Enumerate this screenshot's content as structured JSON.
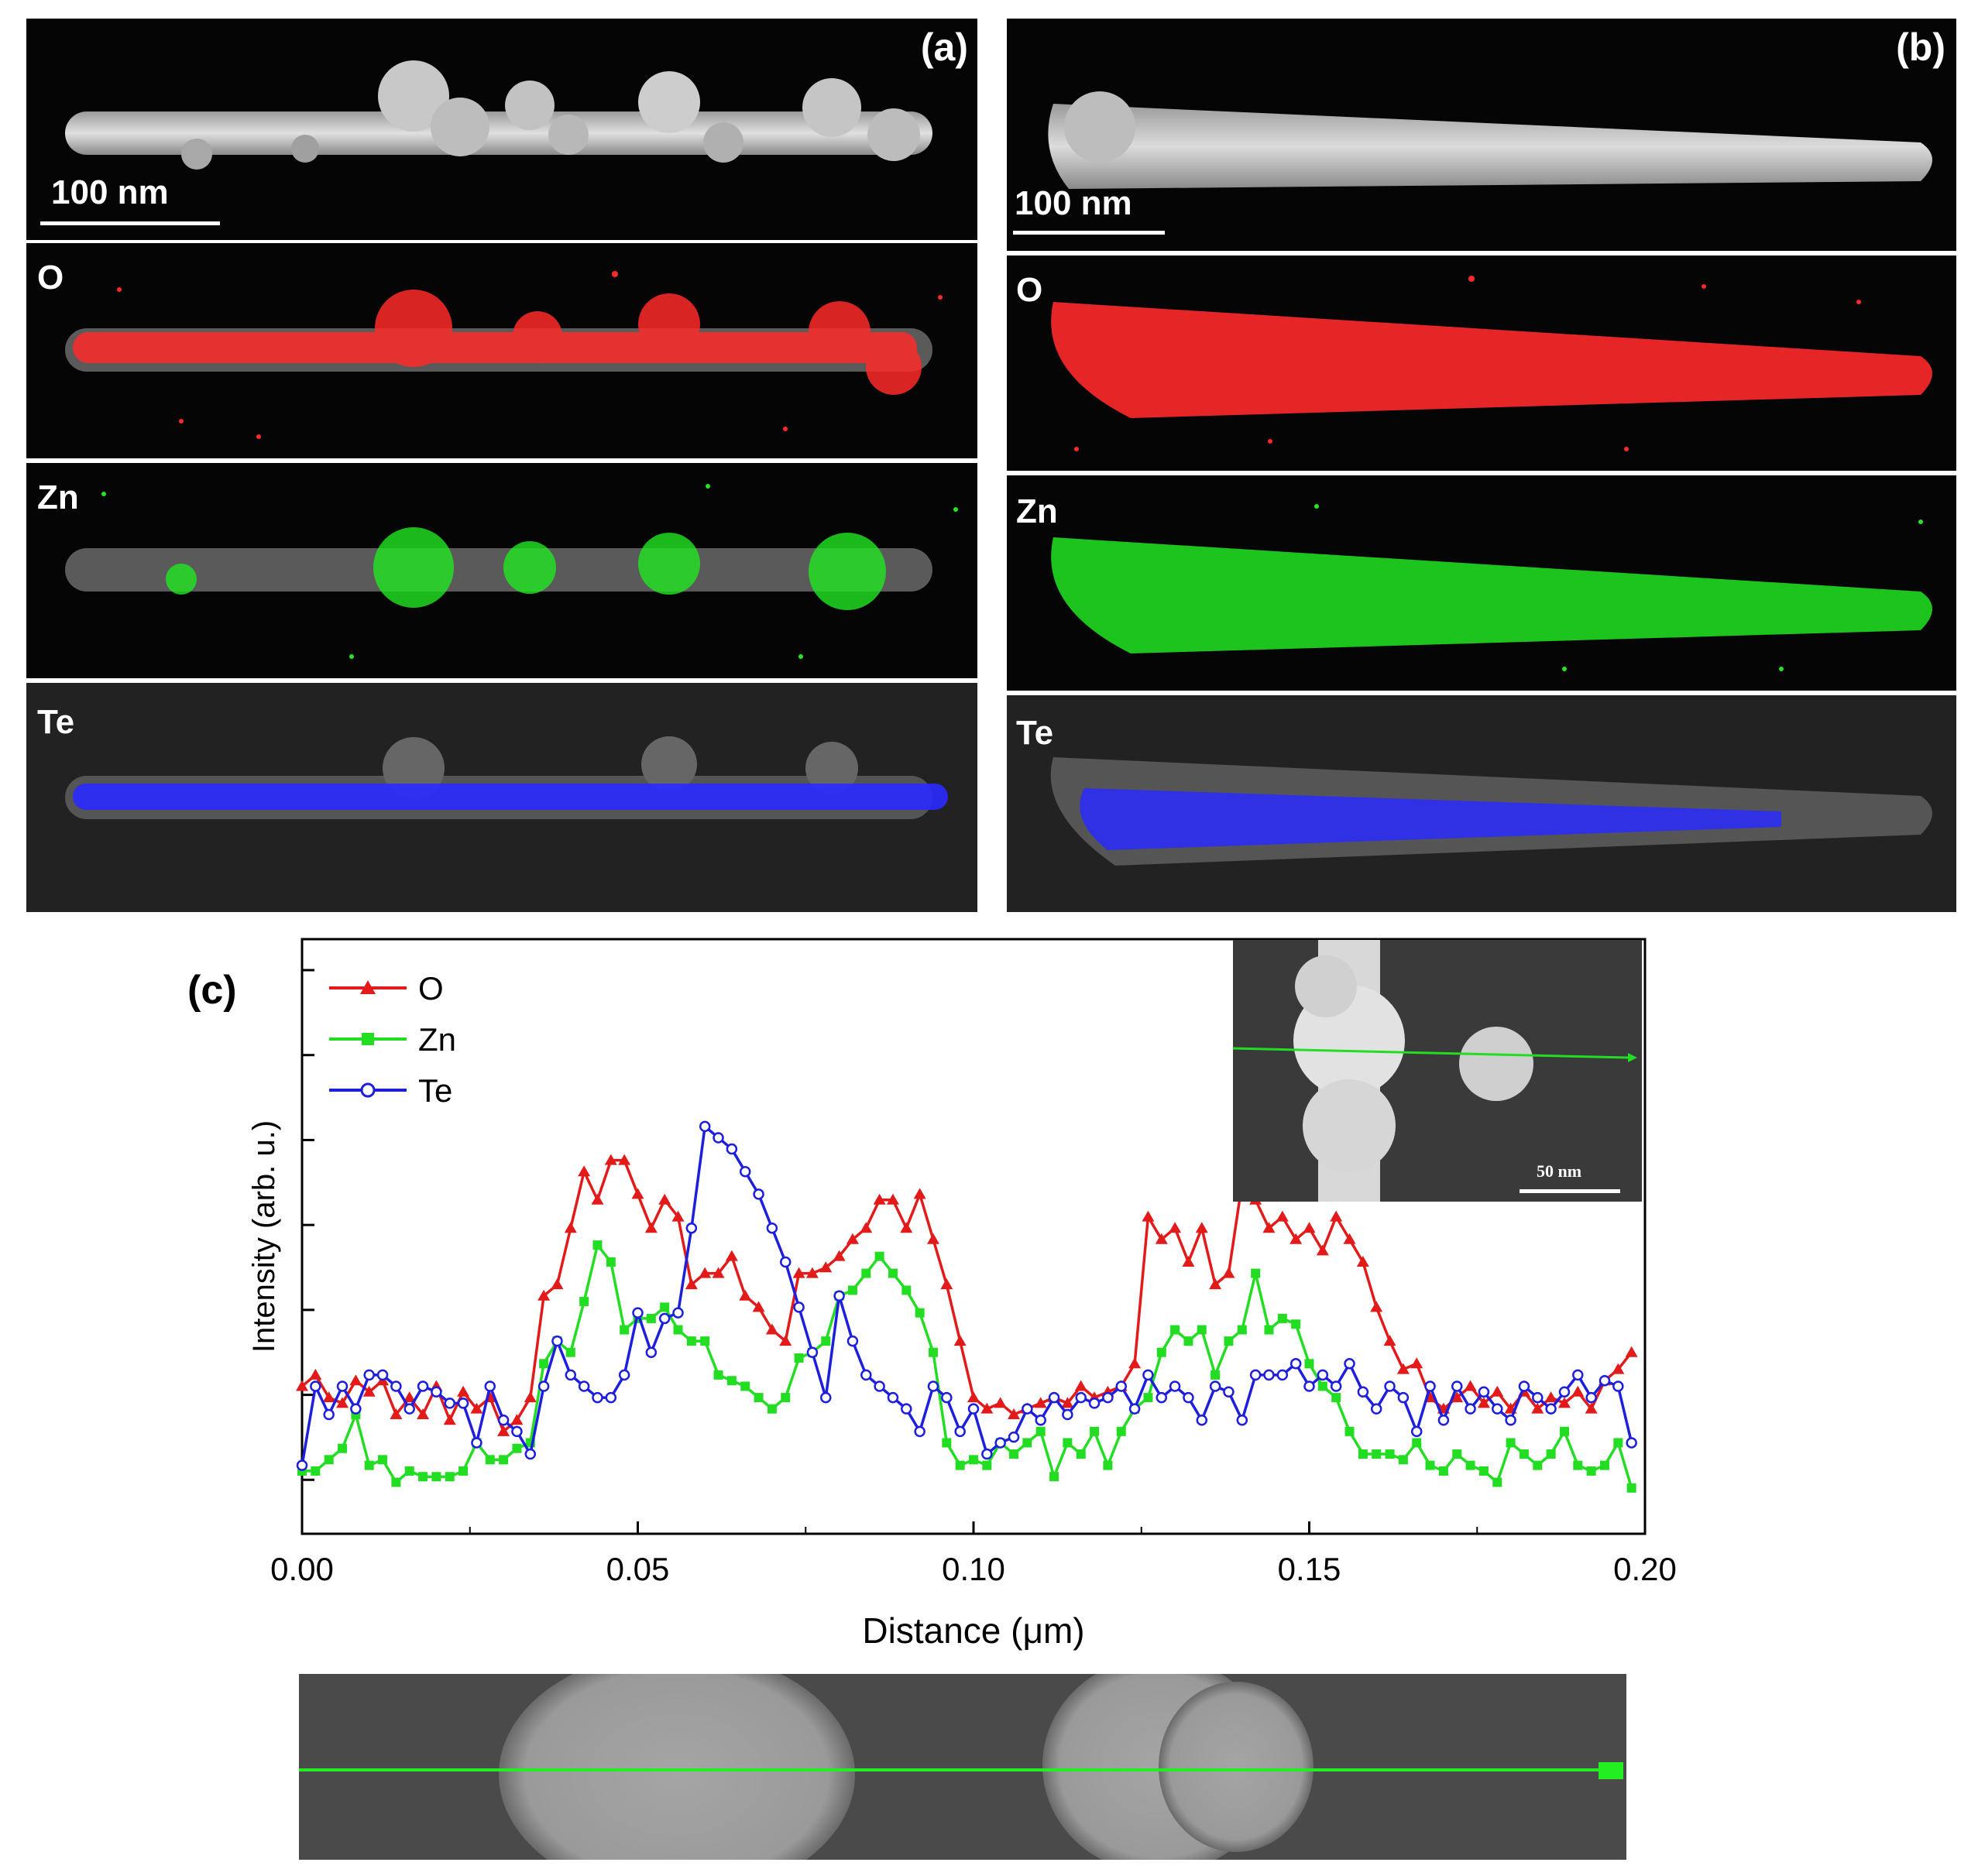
{
  "panels": {
    "a": {
      "label": "(a)",
      "scale_bar": "100 nm",
      "maps": [
        "O",
        "Zn",
        "Te"
      ]
    },
    "b": {
      "label": "(b)",
      "scale_bar": "100 nm",
      "maps": [
        "O",
        "Zn",
        "Te"
      ]
    }
  },
  "map_colors": {
    "O": "#ff2a2a",
    "Zn": "#22e622",
    "Te": "#2a2aff"
  },
  "chart_label": "(c)",
  "inset": {
    "scale_bar": "50 nm",
    "line_color": "#22dd22"
  },
  "chart_data": {
    "type": "line",
    "xlabel": "Distance (μm)",
    "ylabel": "Intensity (arb. u.)",
    "xlim": [
      0.0,
      0.2
    ],
    "ylim": [
      0,
      100
    ],
    "xticks": [
      "0.00",
      "0.05",
      "0.10",
      "0.15",
      "0.20"
    ],
    "legend_position": "top-left",
    "series": [
      {
        "name": "O",
        "color": "#e31a1a",
        "marker": "triangle",
        "x": [
          0.0,
          0.002,
          0.004,
          0.006,
          0.008,
          0.01,
          0.012,
          0.014,
          0.016,
          0.018,
          0.02,
          0.022,
          0.024,
          0.026,
          0.028,
          0.03,
          0.032,
          0.034,
          0.036,
          0.038,
          0.04,
          0.042,
          0.044,
          0.046,
          0.048,
          0.05,
          0.052,
          0.054,
          0.056,
          0.058,
          0.06,
          0.062,
          0.064,
          0.066,
          0.068,
          0.07,
          0.072,
          0.074,
          0.076,
          0.078,
          0.08,
          0.082,
          0.084,
          0.086,
          0.088,
          0.09,
          0.092,
          0.094,
          0.096,
          0.098,
          0.1,
          0.102,
          0.104,
          0.106,
          0.108,
          0.11,
          0.112,
          0.114,
          0.116,
          0.118,
          0.12,
          0.122,
          0.124,
          0.126,
          0.128,
          0.13,
          0.132,
          0.134,
          0.136,
          0.138,
          0.14,
          0.142,
          0.144,
          0.146,
          0.148,
          0.15,
          0.152,
          0.154,
          0.156,
          0.158,
          0.16,
          0.162,
          0.164,
          0.166,
          0.168,
          0.17,
          0.172,
          0.174,
          0.176,
          0.178,
          0.18,
          0.182,
          0.184,
          0.186,
          0.188,
          0.19,
          0.192,
          0.194,
          0.196,
          0.198
        ],
        "y": [
          22,
          24,
          20,
          19,
          23,
          21,
          23,
          17,
          20,
          17,
          22,
          16,
          21,
          18,
          20,
          14,
          16,
          20,
          38,
          40,
          50,
          60,
          55,
          62,
          62,
          56,
          50,
          55,
          52,
          40,
          42,
          42,
          45,
          38,
          36,
          32,
          30,
          42,
          42,
          43,
          45,
          48,
          50,
          55,
          55,
          50,
          56,
          48,
          40,
          30,
          20,
          18,
          19,
          17,
          18,
          19,
          20,
          19,
          22,
          20,
          21,
          22,
          26,
          52,
          48,
          50,
          44,
          50,
          40,
          42,
          58,
          55,
          50,
          52,
          48,
          50,
          46,
          52,
          48,
          44,
          36,
          30,
          25,
          26,
          20,
          18,
          20,
          22,
          19,
          21,
          18,
          21,
          18,
          20,
          19,
          21,
          18,
          23,
          25,
          28
        ]
      },
      {
        "name": "Zn",
        "color": "#22dd22",
        "marker": "square",
        "x": [
          0.0,
          0.002,
          0.004,
          0.006,
          0.008,
          0.01,
          0.012,
          0.014,
          0.016,
          0.018,
          0.02,
          0.022,
          0.024,
          0.026,
          0.028,
          0.03,
          0.032,
          0.034,
          0.036,
          0.038,
          0.04,
          0.042,
          0.044,
          0.046,
          0.048,
          0.05,
          0.052,
          0.054,
          0.056,
          0.058,
          0.06,
          0.062,
          0.064,
          0.066,
          0.068,
          0.07,
          0.072,
          0.074,
          0.076,
          0.078,
          0.08,
          0.082,
          0.084,
          0.086,
          0.088,
          0.09,
          0.092,
          0.094,
          0.096,
          0.098,
          0.1,
          0.102,
          0.104,
          0.106,
          0.108,
          0.11,
          0.112,
          0.114,
          0.116,
          0.118,
          0.12,
          0.122,
          0.124,
          0.126,
          0.128,
          0.13,
          0.132,
          0.134,
          0.136,
          0.138,
          0.14,
          0.142,
          0.144,
          0.146,
          0.148,
          0.15,
          0.152,
          0.154,
          0.156,
          0.158,
          0.16,
          0.162,
          0.164,
          0.166,
          0.168,
          0.17,
          0.172,
          0.174,
          0.176,
          0.178,
          0.18,
          0.182,
          0.184,
          0.186,
          0.188,
          0.19,
          0.192,
          0.194,
          0.196,
          0.198
        ],
        "y": [
          7,
          7,
          9,
          11,
          17,
          8,
          9,
          5,
          7,
          6,
          6,
          6,
          7,
          12,
          9,
          9,
          11,
          12,
          26,
          30,
          28,
          37,
          47,
          44,
          32,
          34,
          34,
          36,
          32,
          30,
          30,
          24,
          23,
          22,
          20,
          18,
          20,
          27,
          28,
          30,
          38,
          39,
          42,
          45,
          42,
          39,
          35,
          28,
          12,
          8,
          9,
          8,
          12,
          10,
          12,
          14,
          6,
          12,
          10,
          14,
          8,
          14,
          18,
          20,
          28,
          32,
          30,
          32,
          24,
          30,
          32,
          42,
          32,
          34,
          33,
          26,
          22,
          20,
          14,
          10,
          10,
          10,
          9,
          12,
          8,
          7,
          10,
          8,
          7,
          5,
          12,
          10,
          8,
          10,
          14,
          8,
          7,
          8,
          12,
          4
        ]
      },
      {
        "name": "Te",
        "color": "#1e1edd",
        "marker": "circle",
        "x": [
          0.0,
          0.002,
          0.004,
          0.006,
          0.008,
          0.01,
          0.012,
          0.014,
          0.016,
          0.018,
          0.02,
          0.022,
          0.024,
          0.026,
          0.028,
          0.03,
          0.032,
          0.034,
          0.036,
          0.038,
          0.04,
          0.042,
          0.044,
          0.046,
          0.048,
          0.05,
          0.052,
          0.054,
          0.056,
          0.058,
          0.06,
          0.062,
          0.064,
          0.066,
          0.068,
          0.07,
          0.072,
          0.074,
          0.076,
          0.078,
          0.08,
          0.082,
          0.084,
          0.086,
          0.088,
          0.09,
          0.092,
          0.094,
          0.096,
          0.098,
          0.1,
          0.102,
          0.104,
          0.106,
          0.108,
          0.11,
          0.112,
          0.114,
          0.116,
          0.118,
          0.12,
          0.122,
          0.124,
          0.126,
          0.128,
          0.13,
          0.132,
          0.134,
          0.136,
          0.138,
          0.14,
          0.142,
          0.144,
          0.146,
          0.148,
          0.15,
          0.152,
          0.154,
          0.156,
          0.158,
          0.16,
          0.162,
          0.164,
          0.166,
          0.168,
          0.17,
          0.172,
          0.174,
          0.176,
          0.178,
          0.18,
          0.182,
          0.184,
          0.186,
          0.188,
          0.19,
          0.192,
          0.194,
          0.196,
          0.198
        ],
        "y": [
          8,
          22,
          17,
          22,
          18,
          24,
          24,
          22,
          18,
          22,
          21,
          19,
          19,
          12,
          22,
          16,
          14,
          10,
          22,
          30,
          24,
          22,
          20,
          20,
          24,
          35,
          28,
          34,
          35,
          50,
          68,
          66,
          64,
          60,
          56,
          50,
          44,
          36,
          28,
          20,
          38,
          30,
          24,
          22,
          20,
          18,
          14,
          22,
          20,
          14,
          18,
          10,
          12,
          13,
          18,
          16,
          20,
          17,
          20,
          19,
          20,
          22,
          18,
          24,
          20,
          22,
          20,
          16,
          22,
          21,
          16,
          24,
          24,
          24,
          26,
          22,
          24,
          22,
          26,
          21,
          18,
          22,
          20,
          14,
          22,
          16,
          22,
          18,
          21,
          18,
          16,
          22,
          20,
          18,
          21,
          24,
          20,
          23,
          22,
          12
        ]
      }
    ]
  }
}
